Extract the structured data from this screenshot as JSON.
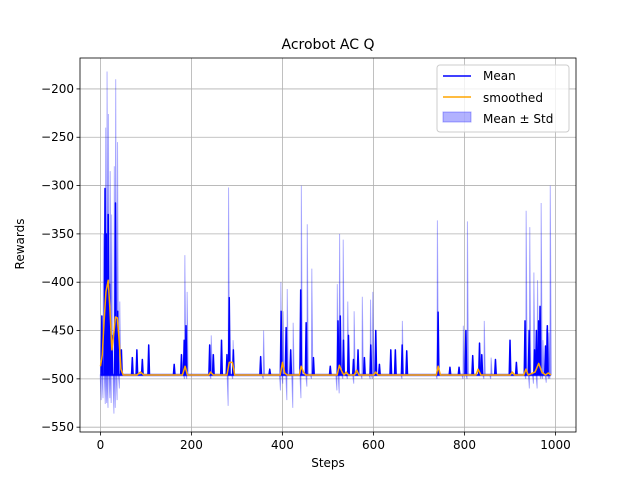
{
  "chart_data": {
    "type": "line",
    "title": "Acrobot AC Q",
    "xlabel": "Steps",
    "ylabel": "Rewards",
    "xlim": [
      -45,
      1045
    ],
    "ylim": [
      -555,
      -168
    ],
    "xticks": [
      0,
      200,
      400,
      600,
      800,
      1000
    ],
    "yticks": [
      -550,
      -500,
      -450,
      -400,
      -350,
      -300,
      -250,
      -200
    ],
    "grid": true,
    "legend_position": "upper right",
    "legend": [
      "Mean",
      "smoothed",
      "Mean ± Std"
    ],
    "colors": {
      "mean": "#0000ff",
      "smoothed": "#ffa500",
      "band": "#0000ff"
    },
    "baseline": -496,
    "series": [
      {
        "name": "Mean",
        "peaks": [
          [
            3,
            -435
          ],
          [
            10,
            -303
          ],
          [
            13,
            -350
          ],
          [
            17,
            -330
          ],
          [
            20,
            -402
          ],
          [
            25,
            -455
          ],
          [
            33,
            -318
          ],
          [
            38,
            -430
          ],
          [
            46,
            -470
          ],
          [
            70,
            -478
          ],
          [
            80,
            -470
          ],
          [
            92,
            -480
          ],
          [
            106,
            -465
          ],
          [
            162,
            -485
          ],
          [
            178,
            -475
          ],
          [
            184,
            -460
          ],
          [
            188,
            -445
          ],
          [
            240,
            -465
          ],
          [
            248,
            -475
          ],
          [
            266,
            -460
          ],
          [
            278,
            -475
          ],
          [
            283,
            -416
          ],
          [
            292,
            -470
          ],
          [
            352,
            -477
          ],
          [
            372,
            -490
          ],
          [
            397,
            -430
          ],
          [
            408,
            -447
          ],
          [
            418,
            -470
          ],
          [
            440,
            -408
          ],
          [
            452,
            -442
          ],
          [
            468,
            -478
          ],
          [
            505,
            -487
          ],
          [
            522,
            -440
          ],
          [
            527,
            -435
          ],
          [
            534,
            -460
          ],
          [
            545,
            -455
          ],
          [
            556,
            -480
          ],
          [
            566,
            -470
          ],
          [
            580,
            -478
          ],
          [
            594,
            -465
          ],
          [
            605,
            -450
          ],
          [
            613,
            -485
          ],
          [
            638,
            -470
          ],
          [
            648,
            -470
          ],
          [
            663,
            -465
          ],
          [
            673,
            -471
          ],
          [
            742,
            -431
          ],
          [
            768,
            -488
          ],
          [
            788,
            -488
          ],
          [
            803,
            -450
          ],
          [
            818,
            -476
          ],
          [
            833,
            -463
          ],
          [
            838,
            -475
          ],
          [
            868,
            -480
          ],
          [
            900,
            -460
          ],
          [
            914,
            -483
          ],
          [
            933,
            -440
          ],
          [
            942,
            -450
          ],
          [
            954,
            -470
          ],
          [
            958,
            -450
          ],
          [
            963,
            -440
          ],
          [
            966,
            -425
          ],
          [
            978,
            -466
          ],
          [
            982,
            -445
          ]
        ]
      },
      {
        "name": "smoothed",
        "points": [
          [
            0,
            -487
          ],
          [
            4,
            -475
          ],
          [
            8,
            -440
          ],
          [
            12,
            -410
          ],
          [
            17,
            -398
          ],
          [
            21,
            -430
          ],
          [
            25,
            -470
          ],
          [
            30,
            -450
          ],
          [
            33,
            -436
          ],
          [
            37,
            -437
          ],
          [
            41,
            -460
          ],
          [
            45,
            -490
          ],
          [
            50,
            -496
          ],
          [
            80,
            -496
          ],
          [
            88,
            -493
          ],
          [
            95,
            -496
          ],
          [
            180,
            -496
          ],
          [
            186,
            -487
          ],
          [
            191,
            -496
          ],
          [
            238,
            -496
          ],
          [
            242,
            -493
          ],
          [
            248,
            -496
          ],
          [
            278,
            -496
          ],
          [
            283,
            -483
          ],
          [
            290,
            -483
          ],
          [
            295,
            -496
          ],
          [
            395,
            -496
          ],
          [
            400,
            -483
          ],
          [
            405,
            -494
          ],
          [
            410,
            -496
          ],
          [
            437,
            -496
          ],
          [
            441,
            -487
          ],
          [
            446,
            -493
          ],
          [
            451,
            -496
          ],
          [
            520,
            -496
          ],
          [
            525,
            -486
          ],
          [
            530,
            -492
          ],
          [
            535,
            -496
          ],
          [
            540,
            -493
          ],
          [
            545,
            -496
          ],
          [
            558,
            -496
          ],
          [
            563,
            -491
          ],
          [
            568,
            -496
          ],
          [
            600,
            -496
          ],
          [
            605,
            -493
          ],
          [
            610,
            -496
          ],
          [
            738,
            -496
          ],
          [
            742,
            -487
          ],
          [
            747,
            -496
          ],
          [
            825,
            -496
          ],
          [
            830,
            -490
          ],
          [
            836,
            -496
          ],
          [
            900,
            -496
          ],
          [
            905,
            -493
          ],
          [
            910,
            -496
          ],
          [
            930,
            -496
          ],
          [
            935,
            -490
          ],
          [
            940,
            -496
          ],
          [
            955,
            -493
          ],
          [
            963,
            -484
          ],
          [
            970,
            -493
          ],
          [
            978,
            -496
          ],
          [
            984,
            -494
          ],
          [
            990,
            -496
          ]
        ]
      },
      {
        "name": "Mean ± Std",
        "spikes": [
          [
            2,
            -522,
            -440
          ],
          [
            6,
            -520,
            -350
          ],
          [
            11,
            -526,
            -240
          ],
          [
            14,
            -525,
            -182
          ],
          [
            17,
            -530,
            -226
          ],
          [
            21,
            -520,
            -285
          ],
          [
            24,
            -525,
            -330
          ],
          [
            30,
            -536,
            -280
          ],
          [
            33,
            -530,
            -190
          ],
          [
            37,
            -522,
            -255
          ],
          [
            42,
            -510,
            -420
          ],
          [
            185,
            -500,
            -372
          ],
          [
            190,
            -500,
            -410
          ],
          [
            243,
            -500,
            -455
          ],
          [
            281,
            -528,
            -302
          ],
          [
            291,
            -500,
            -460
          ],
          [
            358,
            -500,
            -450
          ],
          [
            396,
            -512,
            -400
          ],
          [
            401,
            -505,
            -430
          ],
          [
            410,
            -522,
            -407
          ],
          [
            423,
            -530,
            -442
          ],
          [
            441,
            -520,
            -300
          ],
          [
            454,
            -508,
            -340
          ],
          [
            464,
            -500,
            -386
          ],
          [
            520,
            -512,
            -402
          ],
          [
            525,
            -515,
            -350
          ],
          [
            533,
            -500,
            -356
          ],
          [
            543,
            -500,
            -420
          ],
          [
            557,
            -505,
            -430
          ],
          [
            575,
            -500,
            -415
          ],
          [
            593,
            -500,
            -418
          ],
          [
            598,
            -500,
            -410
          ],
          [
            663,
            -500,
            -440
          ],
          [
            740,
            -500,
            -336
          ],
          [
            797,
            -500,
            -445
          ],
          [
            806,
            -500,
            -337
          ],
          [
            843,
            -500,
            -440
          ],
          [
            858,
            -500,
            -478
          ],
          [
            935,
            -500,
            -326
          ],
          [
            943,
            -510,
            -343
          ],
          [
            952,
            -505,
            -390
          ],
          [
            960,
            -510,
            -398
          ],
          [
            968,
            -500,
            -318
          ],
          [
            972,
            -500,
            -460
          ],
          [
            980,
            -504,
            -448
          ],
          [
            985,
            -500,
            -452
          ],
          [
            988,
            -500,
            -300
          ]
        ]
      }
    ]
  }
}
